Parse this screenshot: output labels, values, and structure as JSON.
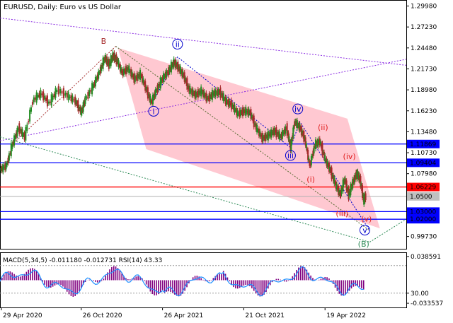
{
  "chart_data": {
    "type": "line",
    "title": "EURUSD, Daily:  Euro vs US Dollar",
    "main": {
      "ylim": [
        0.9812,
        1.3077
      ],
      "y_ticks": [
        "1.29980",
        "1.27230",
        "1.24480",
        "1.21730",
        "1.18980",
        "1.16230",
        "1.13480",
        "1.10730",
        "1.07980",
        "1.05230",
        "1.02480",
        "0.99730"
      ],
      "price_series": [
        {
          "t": 0.0,
          "v": 1.085
        },
        {
          "t": 0.015,
          "v": 1.09
        },
        {
          "t": 0.03,
          "v": 1.118
        },
        {
          "t": 0.045,
          "v": 1.14
        },
        {
          "t": 0.06,
          "v": 1.128
        },
        {
          "t": 0.08,
          "v": 1.176
        },
        {
          "t": 0.1,
          "v": 1.185
        },
        {
          "t": 0.12,
          "v": 1.172
        },
        {
          "t": 0.14,
          "v": 1.19
        },
        {
          "t": 0.165,
          "v": 1.182
        },
        {
          "t": 0.185,
          "v": 1.175
        },
        {
          "t": 0.2,
          "v": 1.16
        },
        {
          "t": 0.21,
          "v": 1.178
        },
        {
          "t": 0.23,
          "v": 1.196
        },
        {
          "t": 0.245,
          "v": 1.214
        },
        {
          "t": 0.258,
          "v": 1.232
        },
        {
          "t": 0.268,
          "v": 1.223
        },
        {
          "t": 0.278,
          "v": 1.235
        },
        {
          "t": 0.288,
          "v": 1.228
        },
        {
          "t": 0.3,
          "v": 1.212
        },
        {
          "t": 0.315,
          "v": 1.218
        },
        {
          "t": 0.33,
          "v": 1.204
        },
        {
          "t": 0.345,
          "v": 1.21
        },
        {
          "t": 0.36,
          "v": 1.19
        },
        {
          "t": 0.372,
          "v": 1.173
        },
        {
          "t": 0.385,
          "v": 1.19
        },
        {
          "t": 0.4,
          "v": 1.205
        },
        {
          "t": 0.415,
          "v": 1.215
        },
        {
          "t": 0.428,
          "v": 1.226
        },
        {
          "t": 0.44,
          "v": 1.218
        },
        {
          "t": 0.452,
          "v": 1.208
        },
        {
          "t": 0.465,
          "v": 1.19
        },
        {
          "t": 0.48,
          "v": 1.183
        },
        {
          "t": 0.495,
          "v": 1.188
        },
        {
          "t": 0.51,
          "v": 1.178
        },
        {
          "t": 0.525,
          "v": 1.185
        },
        {
          "t": 0.54,
          "v": 1.187
        },
        {
          "t": 0.555,
          "v": 1.175
        },
        {
          "t": 0.57,
          "v": 1.17
        },
        {
          "t": 0.585,
          "v": 1.158
        },
        {
          "t": 0.6,
          "v": 1.162
        },
        {
          "t": 0.615,
          "v": 1.16
        },
        {
          "t": 0.63,
          "v": 1.14
        },
        {
          "t": 0.645,
          "v": 1.126
        },
        {
          "t": 0.66,
          "v": 1.13
        },
        {
          "t": 0.675,
          "v": 1.136
        },
        {
          "t": 0.69,
          "v": 1.128
        },
        {
          "t": 0.705,
          "v": 1.14
        },
        {
          "t": 0.715,
          "v": 1.114
        },
        {
          "t": 0.725,
          "v": 1.148
        },
        {
          "t": 0.738,
          "v": 1.14
        },
        {
          "t": 0.75,
          "v": 1.125
        },
        {
          "t": 0.762,
          "v": 1.09
        },
        {
          "t": 0.775,
          "v": 1.118
        },
        {
          "t": 0.787,
          "v": 1.122
        },
        {
          "t": 0.8,
          "v": 1.098
        },
        {
          "t": 0.812,
          "v": 1.085
        },
        {
          "t": 0.825,
          "v": 1.066
        },
        {
          "t": 0.837,
          "v": 1.052
        },
        {
          "t": 0.848,
          "v": 1.073
        },
        {
          "t": 0.858,
          "v": 1.052
        },
        {
          "t": 0.868,
          "v": 1.068
        },
        {
          "t": 0.878,
          "v": 1.08
        },
        {
          "t": 0.886,
          "v": 1.072
        },
        {
          "t": 0.895,
          "v": 1.045
        },
        {
          "t": 0.9,
          "v": 1.05
        }
      ],
      "price_labels": [
        {
          "value": 1.11869,
          "text": "1.11869",
          "bg": "#0000ff"
        },
        {
          "value": 1.09404,
          "text": "1.09404",
          "bg": "#0000ff"
        },
        {
          "value": 1.06229,
          "text": "1.06229",
          "bg": "#ff0000"
        },
        {
          "value": 1.05,
          "text": "1.0500",
          "bg": "#c0c0c0"
        },
        {
          "value": 1.03,
          "text": "1.03000",
          "bg": "#0000ff"
        },
        {
          "value": 1.02,
          "text": "1.02000",
          "bg": "#0000ff"
        }
      ],
      "wave_labels": [
        {
          "text": "B",
          "t": 0.255,
          "v": 1.25,
          "color": "#a52a2a",
          "circled": false
        },
        {
          "text": "ii",
          "t": 0.437,
          "v": 1.246,
          "color": "#0000cd",
          "circled": true
        },
        {
          "text": "i",
          "t": 0.378,
          "v": 1.158,
          "color": "#0000cd",
          "circled": true
        },
        {
          "text": "iv",
          "t": 0.733,
          "v": 1.161,
          "color": "#0000cd",
          "circled": true
        },
        {
          "text": "iii",
          "t": 0.715,
          "v": 1.1,
          "color": "#0000cd",
          "circled": true
        },
        {
          "text": "(ii)",
          "t": 0.795,
          "v": 1.137,
          "color": "#e02020",
          "circled": false
        },
        {
          "text": "(iv)",
          "t": 0.86,
          "v": 1.099,
          "color": "#e02020",
          "circled": false
        },
        {
          "text": "(i)",
          "t": 0.765,
          "v": 1.069,
          "color": "#e02020",
          "circled": false
        },
        {
          "text": "(iii)",
          "t": 0.842,
          "v": 1.024,
          "color": "#e02020",
          "circled": false
        },
        {
          "text": "(v)",
          "t": 0.902,
          "v": 1.017,
          "color": "#e02020",
          "circled": false
        },
        {
          "text": "v",
          "t": 0.898,
          "v": 1.002,
          "color": "#0000cd",
          "circled": true
        },
        {
          "text": "(B)",
          "t": 0.895,
          "v": 0.984,
          "color": "#2e8b57",
          "circled": false
        }
      ]
    },
    "indicator": {
      "label": "MACD(5,34,5) -0.011180 -0.012731 RSI(14) 43.33",
      "ylim": [
        -0.04,
        0.045
      ],
      "y_ticks": [
        "0.038591",
        "30.00",
        "-0.033537"
      ]
    },
    "x_ticks": [
      "29 Apr 2020",
      "26 Oct 2020",
      "26 Apr 2021",
      "21 Oct 2021",
      "19 Apr 2022"
    ],
    "colors": {
      "up": "#228b22",
      "down": "#a52a2a",
      "channel": "#ffb6c1",
      "hist": "#800080",
      "rsi": "#1e90ff"
    }
  }
}
